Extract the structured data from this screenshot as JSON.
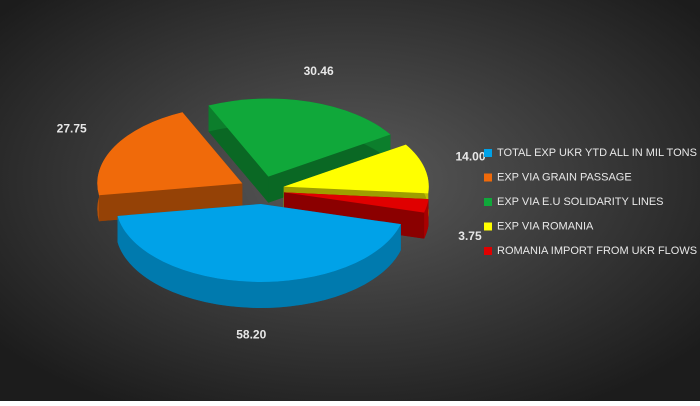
{
  "chart_data": {
    "type": "pie",
    "categories": [
      "TOTAL EXP UKR YTD ALL IN MIL TONS",
      "EXP VIA GRAIN PASSAGE",
      "EXP VIA E.U SOLIDARITY LINES",
      "EXP VIA ROMANIA",
      "ROMANIA IMPORT FROM UKR FLOWS"
    ],
    "values": [
      58.2,
      27.75,
      30.46,
      14,
      3.75
    ],
    "value_labels": [
      "58.20",
      "27.75",
      "30.46",
      "14.00",
      "3.75"
    ],
    "colors": [
      "#00a2e8",
      "#f06a0a",
      "#10a83a",
      "#ffff00",
      "#e00000"
    ],
    "legend": "right"
  }
}
